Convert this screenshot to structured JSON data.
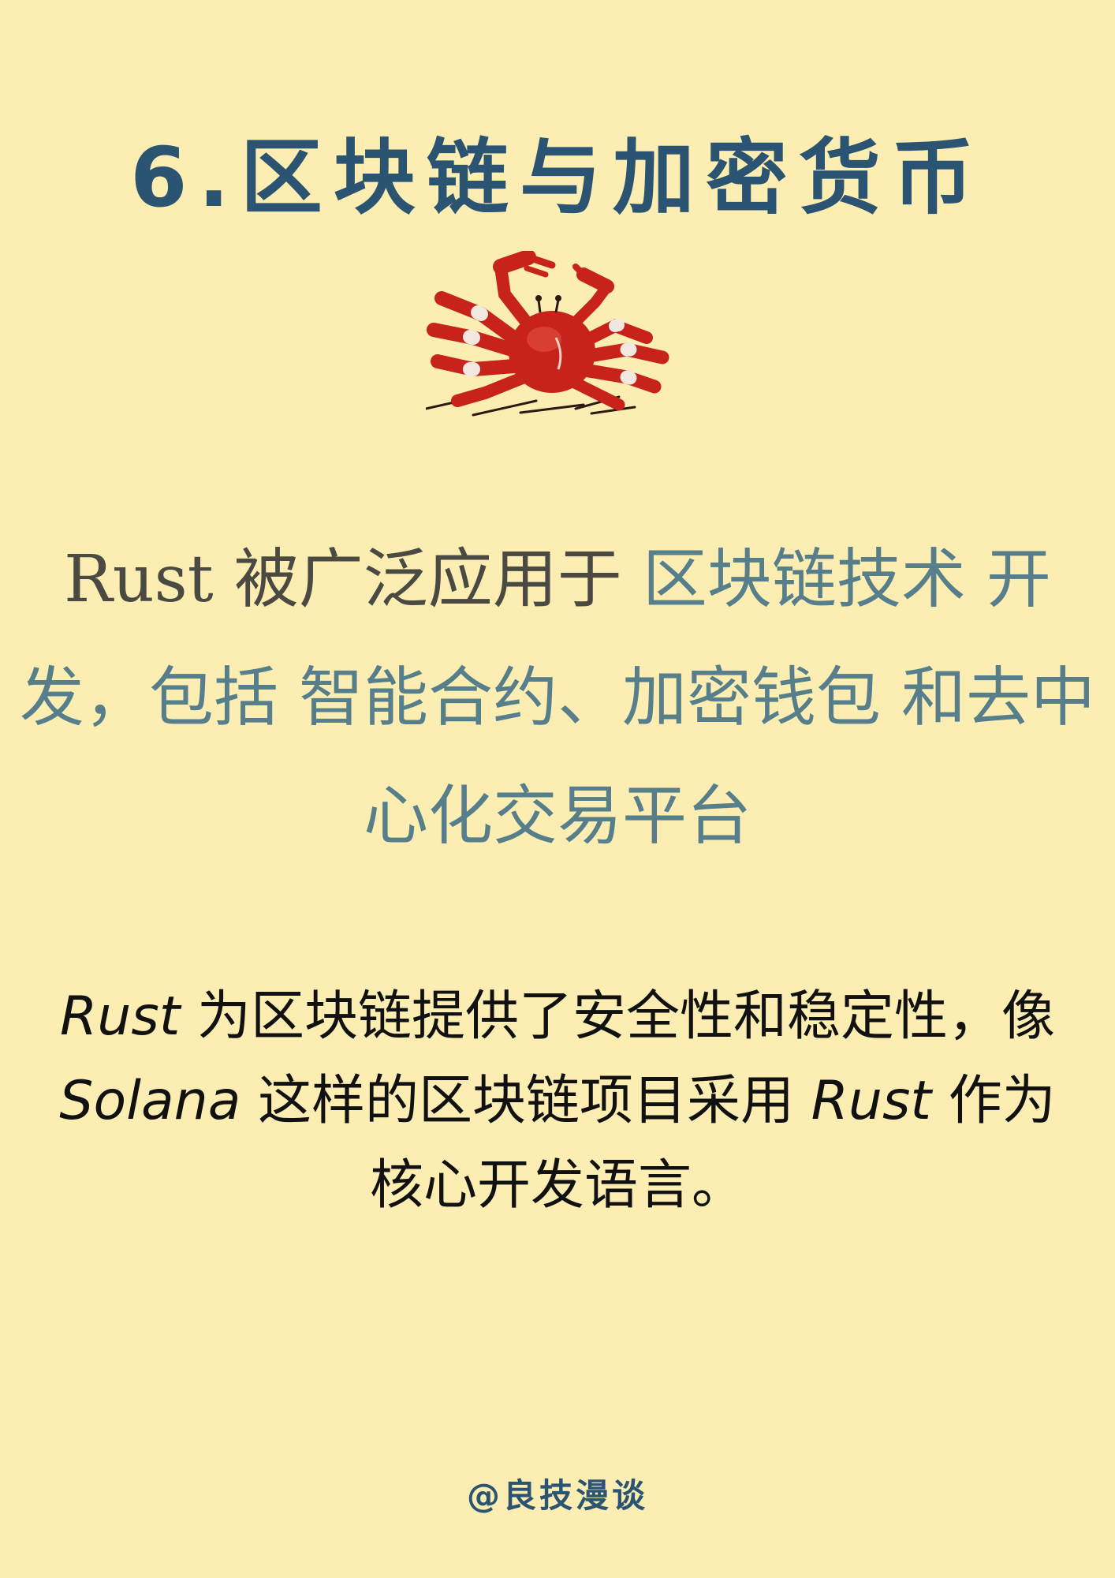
{
  "title": "6.区块链与加密货币",
  "image": {
    "icon": "red-crab-icon",
    "colors": {
      "shell": "#c8221c",
      "leg_band": "#f1e8df",
      "shadow": "#2b1a12"
    }
  },
  "headline": {
    "rust": "Rust",
    "text1": " 被广泛应用于 ",
    "term1": "区块链技术 开发，包括 智能合约、加密钱包 和去中心化交易平台"
  },
  "body": {
    "rust1": "Rust",
    "text1": " 为区块链提供了安全性和稳定性，像 ",
    "solana": "Solana",
    "text2": " 这样的区块链项目采用 ",
    "rust2": "Rust",
    "text3": " 作为核心开发语言。"
  },
  "footer": "@良技漫谈",
  "colors": {
    "background": "#fcedb2",
    "title": "#2a5471",
    "highlight": "#567f8b",
    "body": "#111111"
  }
}
